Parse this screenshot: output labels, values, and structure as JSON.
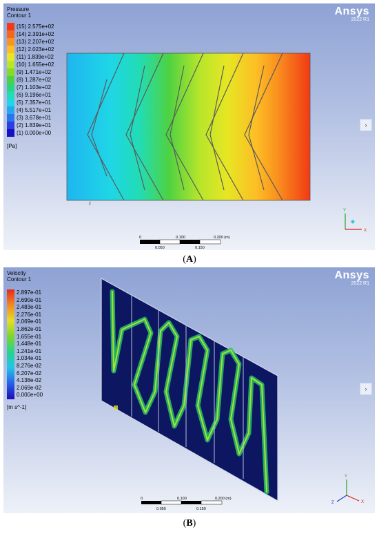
{
  "panel_a": {
    "title_line1": "Pressure",
    "title_line2": "Contour 1",
    "brand": "Ansys",
    "version": "2022 R1",
    "unit": "[Pa]",
    "legend": [
      {
        "label": "(15) 2.575e+02",
        "color": "#f23a15"
      },
      {
        "label": "(14) 2.391e+02",
        "color": "#f6661b"
      },
      {
        "label": "(13) 2.207e+02",
        "color": "#fa941f"
      },
      {
        "label": "(12) 2.023e+02",
        "color": "#fdbd25"
      },
      {
        "label": "(11) 1.839e+02",
        "color": "#e7e624"
      },
      {
        "label": "(10) 1.655e+02",
        "color": "#b9e62a"
      },
      {
        "label": "(9) 1.471e+02",
        "color": "#86dc24"
      },
      {
        "label": "(8) 1.287e+02",
        "color": "#4fd241"
      },
      {
        "label": "(7) 1.103e+02",
        "color": "#2ad67a"
      },
      {
        "label": "(6) 9.196e+01",
        "color": "#22dcb4"
      },
      {
        "label": "(5) 7.357e+01",
        "color": "#1fd6e6"
      },
      {
        "label": "(4) 5.517e+01",
        "color": "#22a9f0"
      },
      {
        "label": "(3) 3.678e+01",
        "color": "#2a74ee"
      },
      {
        "label": "(2) 1.839e+01",
        "color": "#2a3fe0"
      },
      {
        "label": "(1) 0.000e+00",
        "color": "#1810c4"
      }
    ],
    "scale_top": [
      "0",
      "0.100",
      "0.200  (m)"
    ],
    "scale_bottom": [
      "0.050",
      "0.150"
    ],
    "axis": {
      "x": "X",
      "y": "Y"
    }
  },
  "panel_b": {
    "title_line1": "Velocity",
    "title_line2": "Contour 1",
    "brand": "Ansys",
    "version": "2022 R1",
    "unit": "[m s^-1]",
    "legend": [
      {
        "label": "2.897e-01",
        "color": "#e8281c"
      },
      {
        "label": "2.690e-01",
        "color": "#ef5a1f"
      },
      {
        "label": "2.483e-01",
        "color": "#f38a22"
      },
      {
        "label": "2.276e-01",
        "color": "#f7b726"
      },
      {
        "label": "2.069e-01",
        "color": "#e6de26"
      },
      {
        "label": "1.862e-01",
        "color": "#b6e22a"
      },
      {
        "label": "1.655e-01",
        "color": "#7ed62c"
      },
      {
        "label": "1.448e-01",
        "color": "#42d04c"
      },
      {
        "label": "1.241e-01",
        "color": "#26d48a"
      },
      {
        "label": "1.034e-01",
        "color": "#22d6c2"
      },
      {
        "label": "8.276e-02",
        "color": "#20c4ea"
      },
      {
        "label": "6.207e-02",
        "color": "#2494ee"
      },
      {
        "label": "4.138e-02",
        "color": "#2a5ee8"
      },
      {
        "label": "2.069e-02",
        "color": "#2530d8"
      },
      {
        "label": "0.000e+00",
        "color": "#180cb8"
      }
    ],
    "scale_top": [
      "0",
      "0.100",
      "0.200  (m)"
    ],
    "scale_bottom": [
      "0.050",
      "0.150"
    ],
    "axis": {
      "x": "X",
      "y": "Y",
      "z": "Z"
    }
  },
  "captions": {
    "a": "A",
    "b": "B"
  }
}
